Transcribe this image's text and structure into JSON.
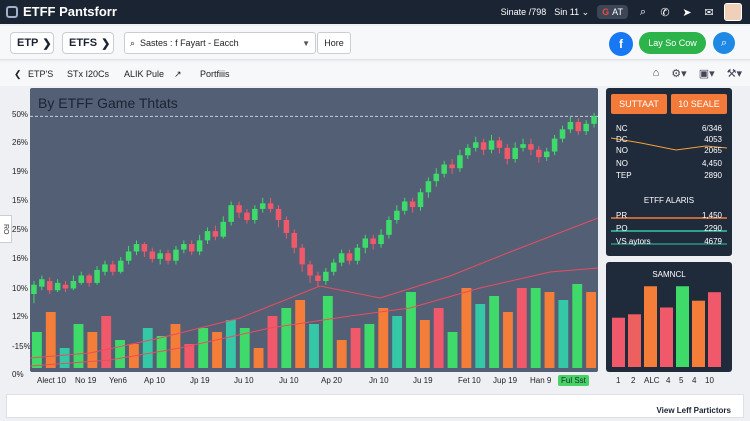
{
  "app": {
    "title": "ETFF Pantsforr"
  },
  "topbar": {
    "date_text": "Sinate /798",
    "session_text": "Sin 11",
    "session_caret": "⌄",
    "g_label": "G",
    "g_text": "AT",
    "icons": [
      "search-icon",
      "phone-icon",
      "send-icon",
      "mail-icon"
    ]
  },
  "toolbar": {
    "pill1": "ETP",
    "pill2": "ETFS",
    "pill_arrow": "❯",
    "search_value": "Sastes : f Fayart - Eacch",
    "search_caret": "▼",
    "hore_label": "Hore",
    "fb_label": "f",
    "cta_label": "Lay So Cow"
  },
  "nav": {
    "back": "❮",
    "items": [
      "ETP'S",
      "STx I20Cs",
      "ALIK Pule",
      "↗",
      "Portfiiis"
    ]
  },
  "left_tab": {
    "label": "RO"
  },
  "chart_data": {
    "type": "candlestick",
    "title": "By ETFF Game Thtats",
    "y_labels": [
      "50%",
      "26%",
      "19%",
      "15%",
      "25%",
      "16%",
      "10%",
      "12%",
      "-15%",
      "0%"
    ],
    "x_labels": [
      "Alect 10",
      "No 19",
      "Yen6",
      "Ap 10",
      "Jp 19",
      "Ju 10",
      "Ju 10",
      "Ap 20",
      "Jn 10",
      "Ju 19",
      "Fet 10",
      "Jup 19",
      "Han 9"
    ],
    "x_badge": "Ful Sst",
    "colors": {
      "up": "#3fdb6a",
      "down": "#f0596a",
      "volume_orange": "#f47d3a",
      "volume_teal": "#34c8a7",
      "line": "#ea4d60",
      "dashed": "#c9ced6"
    },
    "candles": [
      [
        40,
        45,
        35,
        47
      ],
      [
        44,
        48,
        42,
        50
      ],
      [
        47,
        42,
        40,
        49
      ],
      [
        42,
        46,
        41,
        48
      ],
      [
        45,
        43,
        41,
        47
      ],
      [
        43,
        47,
        42,
        50
      ],
      [
        46,
        50,
        45,
        52
      ],
      [
        50,
        46,
        44,
        51
      ],
      [
        46,
        53,
        45,
        55
      ],
      [
        52,
        56,
        50,
        58
      ],
      [
        56,
        52,
        50,
        58
      ],
      [
        52,
        58,
        51,
        60
      ],
      [
        58,
        63,
        56,
        66
      ],
      [
        63,
        67,
        61,
        69
      ],
      [
        67,
        63,
        60,
        68
      ],
      [
        63,
        59,
        57,
        65
      ],
      [
        59,
        62,
        56,
        64
      ],
      [
        62,
        58,
        56,
        64
      ],
      [
        58,
        64,
        56,
        66
      ],
      [
        64,
        67,
        62,
        69
      ],
      [
        67,
        63,
        61,
        69
      ],
      [
        63,
        69,
        61,
        72
      ],
      [
        69,
        74,
        67,
        76
      ],
      [
        74,
        71,
        69,
        77
      ],
      [
        71,
        79,
        70,
        82
      ],
      [
        79,
        88,
        77,
        90
      ],
      [
        88,
        84,
        81,
        90
      ],
      [
        84,
        80,
        78,
        86
      ],
      [
        80,
        86,
        78,
        88
      ],
      [
        86,
        89,
        84,
        92
      ],
      [
        89,
        86,
        84,
        92
      ],
      [
        86,
        80,
        76,
        88
      ],
      [
        80,
        73,
        70,
        82
      ],
      [
        73,
        65,
        62,
        75
      ],
      [
        65,
        56,
        52,
        67
      ],
      [
        56,
        50,
        46,
        58
      ],
      [
        50,
        47,
        44,
        52
      ],
      [
        47,
        52,
        45,
        54
      ],
      [
        52,
        57,
        50,
        59
      ],
      [
        57,
        62,
        55,
        64
      ],
      [
        62,
        58,
        56,
        64
      ],
      [
        58,
        65,
        56,
        67
      ],
      [
        65,
        70,
        62,
        72
      ],
      [
        70,
        67,
        64,
        72
      ],
      [
        67,
        72,
        65,
        75
      ],
      [
        72,
        80,
        70,
        82
      ],
      [
        80,
        85,
        78,
        88
      ],
      [
        85,
        90,
        83,
        92
      ],
      [
        90,
        87,
        84,
        92
      ],
      [
        87,
        95,
        85,
        97
      ],
      [
        95,
        101,
        92,
        103
      ],
      [
        101,
        105,
        98,
        108
      ],
      [
        105,
        110,
        103,
        112
      ],
      [
        110,
        108,
        105,
        113
      ],
      [
        108,
        115,
        106,
        118
      ],
      [
        115,
        119,
        113,
        121
      ],
      [
        119,
        122,
        117,
        125
      ],
      [
        122,
        118,
        115,
        124
      ],
      [
        118,
        123,
        116,
        126
      ],
      [
        123,
        119,
        116,
        125
      ],
      [
        119,
        113,
        110,
        121
      ],
      [
        113,
        119,
        111,
        122
      ],
      [
        119,
        121,
        117,
        124
      ],
      [
        121,
        118,
        115,
        124
      ],
      [
        118,
        114,
        111,
        120
      ],
      [
        114,
        117,
        112,
        119
      ],
      [
        117,
        124,
        115,
        126
      ],
      [
        124,
        129,
        122,
        131
      ],
      [
        129,
        133,
        127,
        136
      ],
      [
        133,
        128,
        126,
        135
      ],
      [
        128,
        132,
        126,
        134
      ],
      [
        132,
        136,
        130,
        138
      ]
    ],
    "volumes": [
      18,
      28,
      10,
      22,
      18,
      26,
      14,
      12,
      20,
      16,
      22,
      12,
      20,
      18,
      24,
      20,
      10,
      26,
      30,
      34,
      22,
      36,
      14,
      20,
      22,
      30,
      26,
      38,
      24,
      30,
      18,
      40,
      32,
      36,
      28,
      40,
      40,
      38,
      34,
      42,
      38
    ],
    "lines": [
      [
        [
          0,
          10
        ],
        [
          60,
          15
        ],
        [
          130,
          30
        ],
        [
          210,
          50
        ],
        [
          290,
          82
        ],
        [
          350,
          70
        ],
        [
          420,
          92
        ],
        [
          480,
          116
        ],
        [
          568,
          150
        ]
      ],
      [
        [
          0,
          2
        ],
        [
          80,
          8
        ],
        [
          150,
          20
        ],
        [
          240,
          40
        ],
        [
          320,
          52
        ],
        [
          380,
          60
        ],
        [
          450,
          80
        ],
        [
          520,
          96
        ],
        [
          568,
          100
        ]
      ]
    ],
    "dashed_level": 136
  },
  "side": {
    "btn1": "SUTTAAT",
    "btn2": "10 SEALE",
    "rows": [
      {
        "k": "NC",
        "v": "6/346"
      },
      {
        "k": "DC",
        "v": "4053"
      },
      {
        "k": "NO",
        "v": "2065"
      },
      {
        "k": "NO",
        "v": "4,450"
      },
      {
        "k": "TEP",
        "v": "2890"
      }
    ],
    "sub_title": "ETFF ALARIS",
    "rows2": [
      {
        "k": "PR",
        "v": "1,450"
      },
      {
        "k": "PO",
        "v": "2290"
      },
      {
        "k": "VS aytors",
        "v": "4679"
      }
    ],
    "bar_title": "SAMNCL",
    "bar_labels": [
      "1",
      "2",
      "ALC",
      "4",
      "5",
      "4",
      "10"
    ],
    "bars": [
      {
        "v": 0.58,
        "c": "#f0596a"
      },
      {
        "v": 0.62,
        "c": "#ec6060"
      },
      {
        "v": 0.95,
        "c": "#f47d3a"
      },
      {
        "v": 0.7,
        "c": "#f0596a"
      },
      {
        "v": 0.95,
        "c": "#3fdb6a"
      },
      {
        "v": 0.78,
        "c": "#f47d3a"
      },
      {
        "v": 0.88,
        "c": "#f0596a"
      }
    ]
  },
  "footer": {
    "link": "View Leff Partictors"
  }
}
